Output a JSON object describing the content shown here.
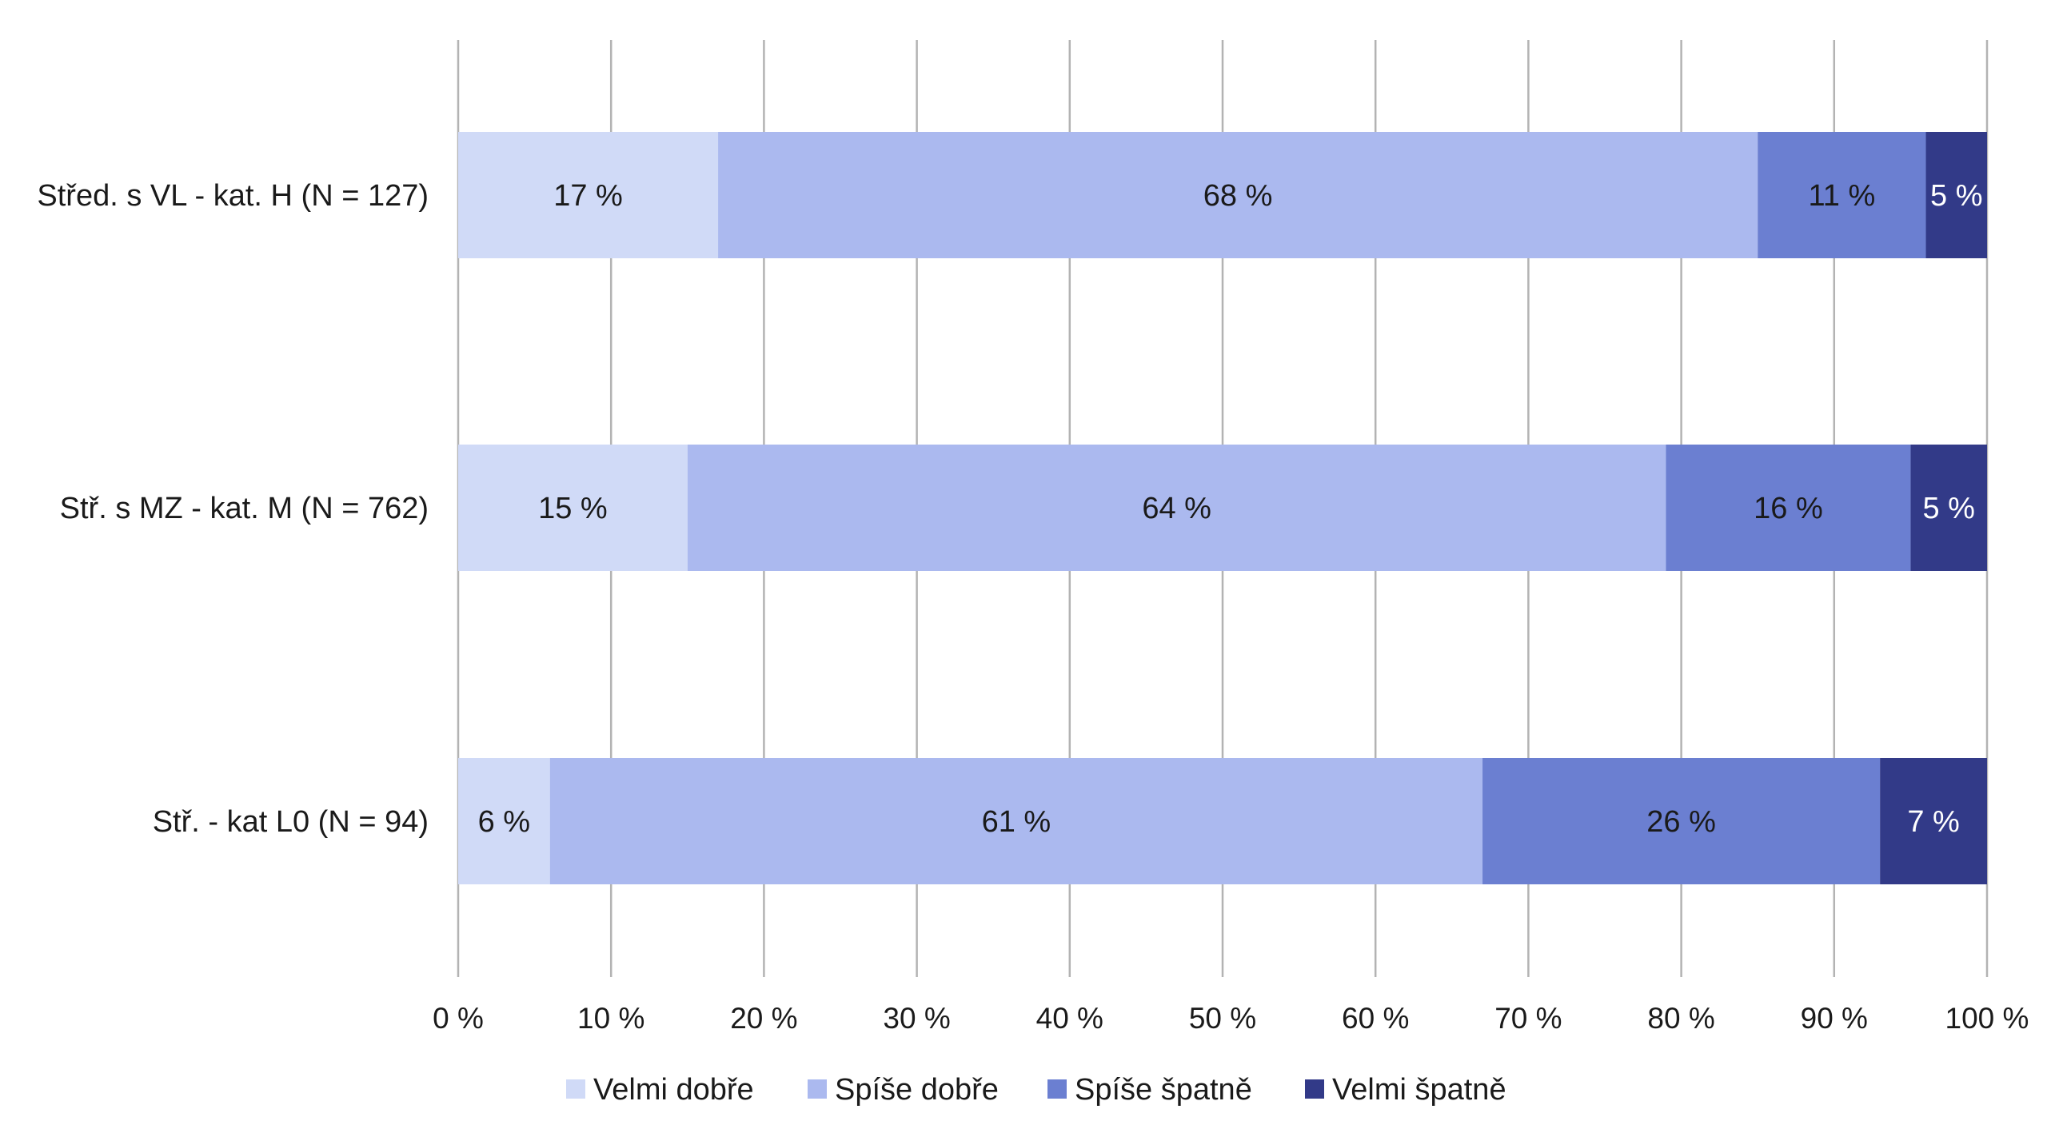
{
  "chart_data": {
    "type": "bar",
    "orientation": "horizontal",
    "stacked": true,
    "percent_stacked": true,
    "categories": [
      "Střed. s VL - kat. H (N = 127)",
      "Stř. s MZ - kat. M (N = 762)",
      "Stř. - kat L0 (N = 94)"
    ],
    "series": [
      {
        "name": "Velmi dobře",
        "color": "#d0daf7",
        "text_color": "#1a1a1a",
        "values": [
          17,
          15,
          6
        ],
        "labels": [
          "17 %",
          "15 %",
          "6 %"
        ]
      },
      {
        "name": "Spíše dobře",
        "color": "#abb9ef",
        "text_color": "#1a1a1a",
        "values": [
          68,
          64,
          61
        ],
        "labels": [
          "68 %",
          "64 %",
          "61 %"
        ]
      },
      {
        "name": "Spíše špatně",
        "color": "#6b7fd1",
        "text_color": "#1a1a1a",
        "values": [
          11,
          16,
          26
        ],
        "labels": [
          "11 %",
          "16 %",
          "26 %"
        ]
      },
      {
        "name": "Velmi špatně",
        "color": "#323a88",
        "text_color": "#ffffff",
        "values": [
          5,
          5,
          7
        ],
        "labels": [
          "5 %",
          "5 %",
          "7 %"
        ]
      }
    ],
    "x_ticks": [
      "0 %",
      "10 %",
      "20 %",
      "30 %",
      "40 %",
      "50 %",
      "60 %",
      "70 %",
      "80 %",
      "90 %",
      "100 %"
    ],
    "xlim": [
      0,
      100
    ],
    "grid": true,
    "legend_position": "bottom",
    "title": "",
    "xlabel": "",
    "ylabel": ""
  }
}
